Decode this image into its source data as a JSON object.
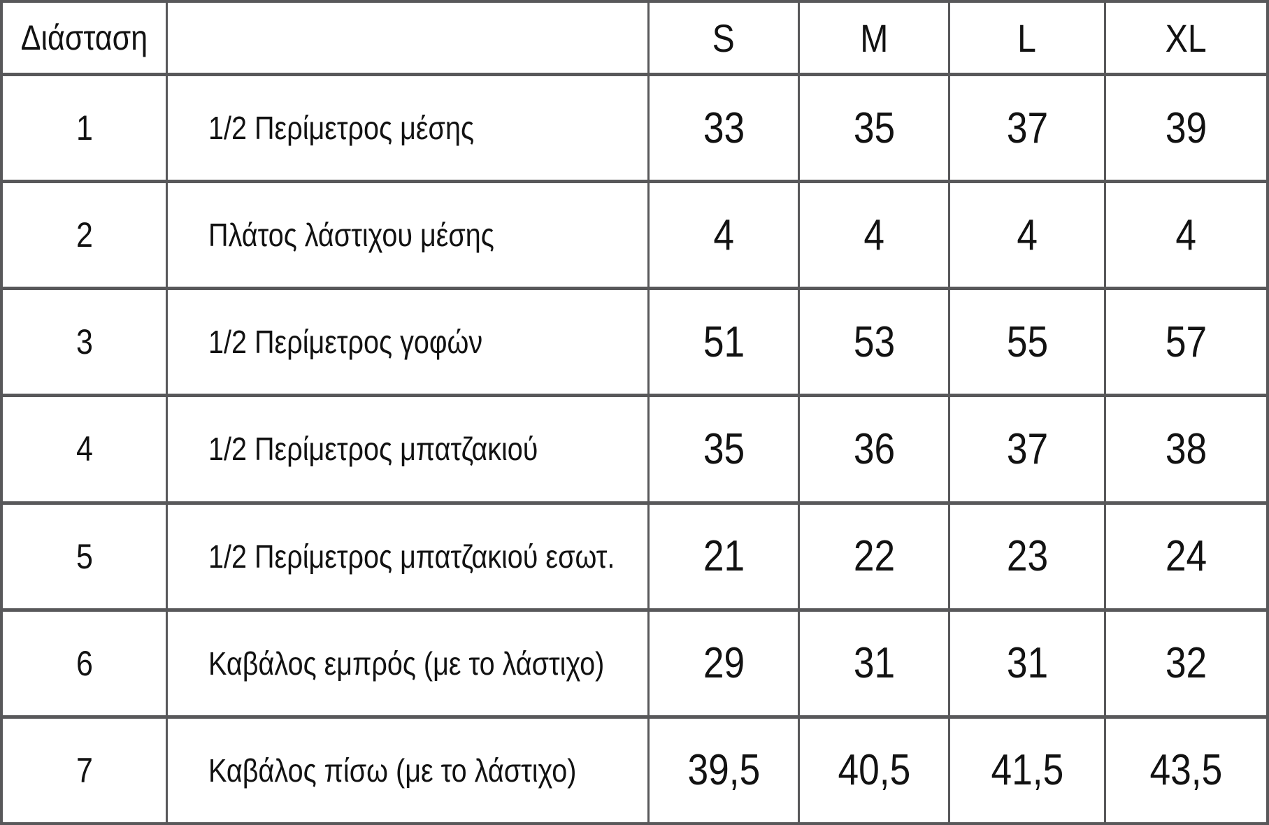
{
  "table": {
    "header": {
      "dimension_label": "Διάσταση",
      "description_label": "",
      "sizes": [
        "S",
        "M",
        "L",
        "XL"
      ]
    },
    "rows": [
      {
        "num": "1",
        "label": "1/2 Περίμετρος μέσης",
        "values": [
          "33",
          "35",
          "37",
          "39"
        ]
      },
      {
        "num": "2",
        "label": "Πλάτος λάστιχου μέσης",
        "values": [
          "4",
          "4",
          "4",
          "4"
        ]
      },
      {
        "num": "3",
        "label": "1/2 Περίμετρος γοφών",
        "values": [
          "51",
          "53",
          "55",
          "57"
        ]
      },
      {
        "num": "4",
        "label": "1/2 Περίμετρος μπατζακιού",
        "values": [
          "35",
          "36",
          "37",
          "38"
        ]
      },
      {
        "num": "5",
        "label": "1/2 Περίμετρος μπατζακιού εσωτ.",
        "values": [
          "21",
          "22",
          "23",
          "24"
        ]
      },
      {
        "num": "6",
        "label": "Καβάλος εμπρός (με το λάστιχο)",
        "values": [
          "29",
          "31",
          "31",
          "32"
        ]
      },
      {
        "num": "7",
        "label": "Καβάλος πίσω (με το λάστιχο)",
        "values": [
          "39,5",
          "40,5",
          "41,5",
          "43,5"
        ]
      }
    ],
    "grid_line_color": "#58585a",
    "text_color": "#121212"
  },
  "chart_data": {
    "type": "table",
    "title": "",
    "columns": [
      "Διάσταση",
      "",
      "S",
      "M",
      "L",
      "XL"
    ],
    "rows": [
      [
        1,
        "1/2 Περίμετρος μέσης",
        33,
        35,
        37,
        39
      ],
      [
        2,
        "Πλάτος λάστιχου μέσης",
        4,
        4,
        4,
        4
      ],
      [
        3,
        "1/2 Περίμετρος γοφών",
        51,
        53,
        55,
        57
      ],
      [
        4,
        "1/2 Περίμετρος μπατζακιού",
        35,
        36,
        37,
        38
      ],
      [
        5,
        "1/2 Περίμετρος μπατζακιού εσωτ.",
        21,
        22,
        23,
        24
      ],
      [
        6,
        "Καβάλος εμπρός (με το λάστιχο)",
        29,
        31,
        31,
        32
      ],
      [
        7,
        "Καβάλος πίσω (με το λάστιχο)",
        39.5,
        40.5,
        41.5,
        43.5
      ]
    ],
    "decimal_separator": ",",
    "notes": "Greek garment size chart; grid on; no legend; no axes"
  }
}
